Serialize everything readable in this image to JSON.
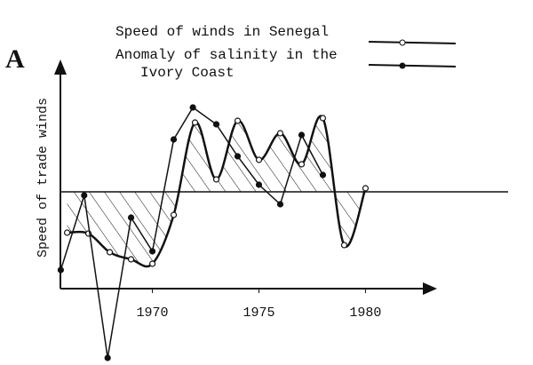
{
  "chart_data": {
    "type": "line",
    "panel_label": "A",
    "y_label": "Speed of trade winds",
    "xlim": [
      1965.6,
      1983.4
    ],
    "xticks": [
      1970,
      1975,
      1980
    ],
    "ylim": [
      -9.5,
      7.5
    ],
    "series": [
      {
        "name": "Speed of winds in Senegal",
        "color": "#111111",
        "marker": "open",
        "smooth": true,
        "hatched": true,
        "x": [
          1966,
          1967,
          1968,
          1969,
          1970,
          1971,
          1972,
          1973,
          1974,
          1975,
          1976,
          1977,
          1978,
          1979,
          1980
        ],
        "values": [
          -2.3,
          -2.35,
          -3.4,
          -3.8,
          -4.05,
          -1.3,
          3.9,
          0.7,
          4.0,
          1.8,
          3.3,
          1.55,
          4.15,
          -3.0,
          0.2
        ]
      },
      {
        "name": "Anomaly of salinity in the Ivory Coast",
        "color": "#111111",
        "marker": "filled",
        "smooth": false,
        "hatched": false,
        "x": [
          1965.7,
          1966.8,
          1967.9,
          1969,
          1970,
          1971,
          1971.9,
          1973,
          1974,
          1975,
          1976,
          1977,
          1978
        ],
        "values": [
          -4.4,
          -0.2,
          -9.35,
          -1.45,
          -3.35,
          2.95,
          4.75,
          3.8,
          2.0,
          0.4,
          -0.7,
          3.2,
          0.95
        ]
      }
    ]
  }
}
